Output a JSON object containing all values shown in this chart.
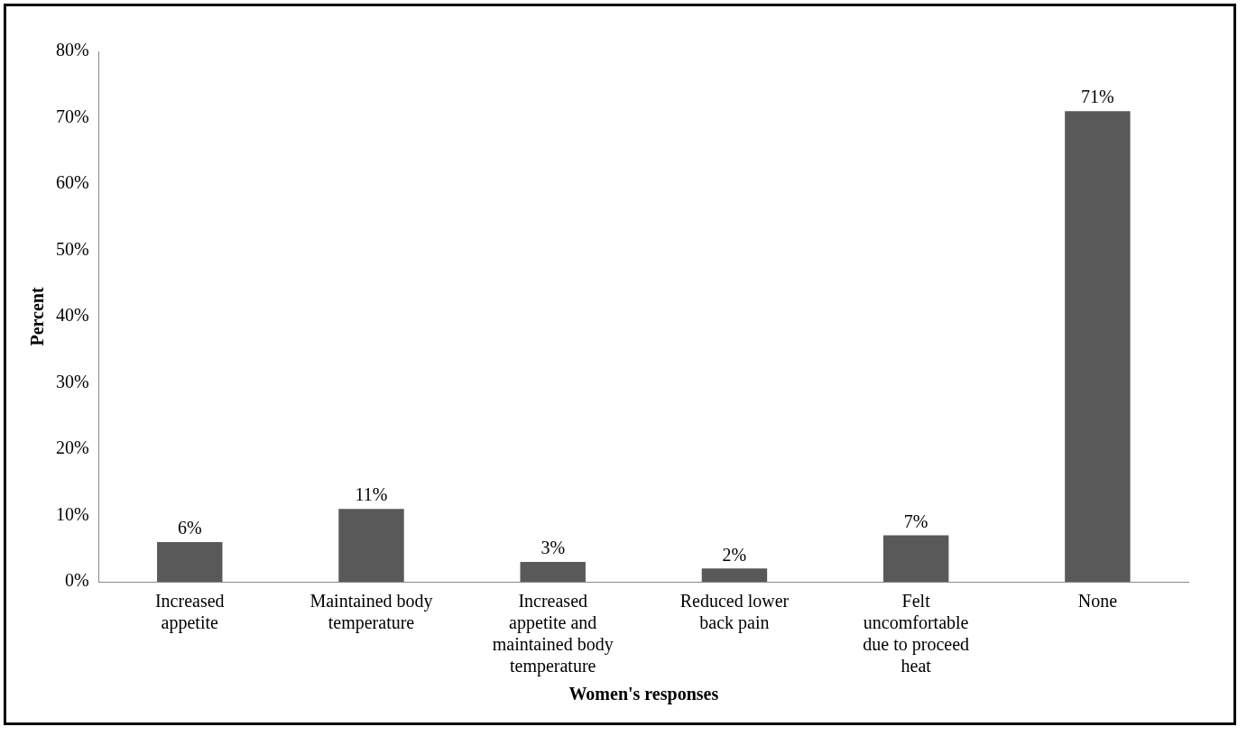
{
  "chart_data": {
    "type": "bar",
    "xlabel": "Women's responses",
    "ylabel": "Percent",
    "categories": [
      "Increased appetite",
      "Maintained body temperature",
      "Increased appetite and maintained body temperature",
      "Reduced lower back pain",
      "Felt uncomfortable due to proceed heat",
      "None"
    ],
    "values": [
      6,
      11,
      3,
      2,
      7,
      71
    ],
    "value_labels": [
      "6%",
      "11%",
      "3%",
      "2%",
      "7%",
      "71%"
    ],
    "color": "#595959",
    "ylim": [
      0,
      80
    ],
    "yticks": [
      {
        "value": 0,
        "label": "0%"
      },
      {
        "value": 10,
        "label": "10%"
      },
      {
        "value": 20,
        "label": "20%"
      },
      {
        "value": 30,
        "label": "30%"
      },
      {
        "value": 40,
        "label": "40%"
      },
      {
        "value": 50,
        "label": "50%"
      },
      {
        "value": 60,
        "label": "60%"
      },
      {
        "value": 70,
        "label": "70%"
      },
      {
        "value": 80,
        "label": "80%"
      }
    ],
    "grid": false,
    "legend": false
  }
}
